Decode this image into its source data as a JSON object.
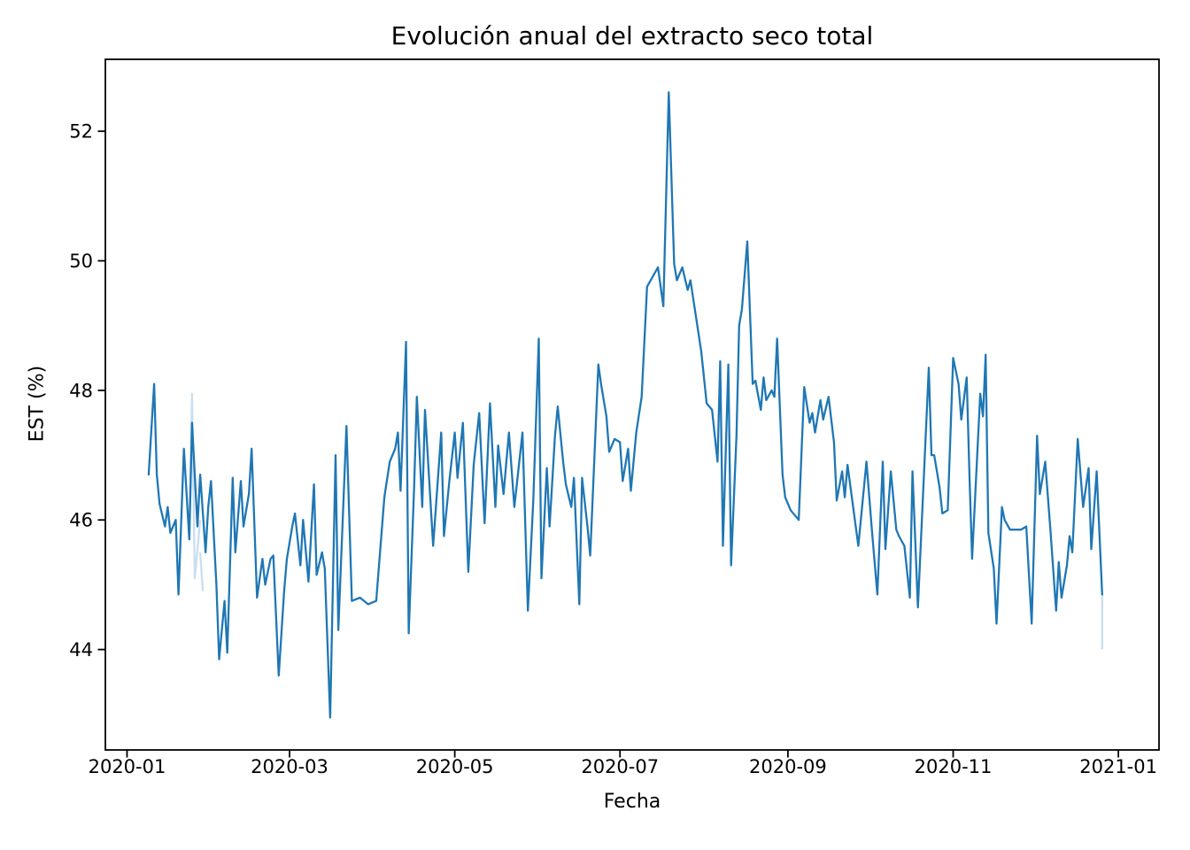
{
  "chart_data": {
    "type": "line",
    "title": "Evolución anual del extracto seco total",
    "xlabel": "Fecha",
    "ylabel": "EST (%)",
    "grid": false,
    "legend": "none",
    "line_color": "#1f77b4",
    "faint_line_color": "#cbdeef",
    "axis_color": "#000000",
    "ylim": [
      42.45,
      53.11
    ],
    "xlim": [
      "2019-12-24",
      "2021-01-16"
    ],
    "y_ticks": [
      {
        "label": "44",
        "value": 44
      },
      {
        "label": "46",
        "value": 46
      },
      {
        "label": "48",
        "value": 48
      },
      {
        "label": "50",
        "value": 50
      },
      {
        "label": "52",
        "value": 52
      }
    ],
    "x_ticks": [
      {
        "label": "2020-01",
        "date": "2020-01-01"
      },
      {
        "label": "2020-03",
        "date": "2020-03-01"
      },
      {
        "label": "2020-05",
        "date": "2020-05-01"
      },
      {
        "label": "2020-07",
        "date": "2020-07-01"
      },
      {
        "label": "2020-09",
        "date": "2020-09-01"
      },
      {
        "label": "2020-11",
        "date": "2020-11-01"
      },
      {
        "label": "2021-01",
        "date": "2021-01-01"
      }
    ],
    "series": [
      {
        "name": "EST",
        "points": [
          [
            "2020-01-09",
            46.7
          ],
          [
            "2020-01-11",
            48.1
          ],
          [
            "2020-01-12",
            46.7
          ],
          [
            "2020-01-13",
            46.25
          ],
          [
            "2020-01-15",
            45.9
          ],
          [
            "2020-01-16",
            46.2
          ],
          [
            "2020-01-17",
            45.8
          ],
          [
            "2020-01-19",
            46.0
          ],
          [
            "2020-01-20",
            44.85
          ],
          [
            "2020-01-22",
            47.1
          ],
          [
            "2020-01-24",
            45.7
          ],
          [
            "2020-01-25",
            47.5
          ],
          [
            "2020-01-27",
            45.9
          ],
          [
            "2020-01-28",
            46.7
          ],
          [
            "2020-01-30",
            45.5
          ],
          [
            "2020-01-31",
            46.2
          ],
          [
            "2020-02-01",
            46.6
          ],
          [
            "2020-02-03",
            45.0
          ],
          [
            "2020-02-04",
            43.85
          ],
          [
            "2020-02-06",
            44.75
          ],
          [
            "2020-02-07",
            43.95
          ],
          [
            "2020-02-09",
            46.65
          ],
          [
            "2020-02-10",
            45.5
          ],
          [
            "2020-02-12",
            46.6
          ],
          [
            "2020-02-13",
            45.9
          ],
          [
            "2020-02-15",
            46.4
          ],
          [
            "2020-02-16",
            47.1
          ],
          [
            "2020-02-18",
            44.8
          ],
          [
            "2020-02-20",
            45.4
          ],
          [
            "2020-02-21",
            45.0
          ],
          [
            "2020-02-23",
            45.4
          ],
          [
            "2020-02-24",
            45.45
          ],
          [
            "2020-02-26",
            43.6
          ],
          [
            "2020-02-28",
            44.9
          ],
          [
            "2020-02-29",
            45.4
          ],
          [
            "2020-03-02",
            45.9
          ],
          [
            "2020-03-03",
            46.1
          ],
          [
            "2020-03-05",
            45.3
          ],
          [
            "2020-03-06",
            46.0
          ],
          [
            "2020-03-08",
            45.05
          ],
          [
            "2020-03-10",
            46.55
          ],
          [
            "2020-03-11",
            45.15
          ],
          [
            "2020-03-13",
            45.5
          ],
          [
            "2020-03-14",
            45.25
          ],
          [
            "2020-03-16",
            42.95
          ],
          [
            "2020-03-18",
            47.0
          ],
          [
            "2020-03-19",
            44.3
          ],
          [
            "2020-03-22",
            47.45
          ],
          [
            "2020-03-24",
            44.75
          ],
          [
            "2020-03-27",
            44.8
          ],
          [
            "2020-03-30",
            44.7
          ],
          [
            "2020-04-02",
            44.75
          ],
          [
            "2020-04-05",
            46.35
          ],
          [
            "2020-04-07",
            46.9
          ],
          [
            "2020-04-09",
            47.1
          ],
          [
            "2020-04-10",
            47.35
          ],
          [
            "2020-04-11",
            46.45
          ],
          [
            "2020-04-13",
            48.75
          ],
          [
            "2020-04-14",
            44.25
          ],
          [
            "2020-04-16",
            46.5
          ],
          [
            "2020-04-17",
            47.9
          ],
          [
            "2020-04-19",
            46.2
          ],
          [
            "2020-04-20",
            47.7
          ],
          [
            "2020-04-23",
            45.6
          ],
          [
            "2020-04-26",
            47.35
          ],
          [
            "2020-04-27",
            45.75
          ],
          [
            "2020-04-29",
            46.6
          ],
          [
            "2020-05-01",
            47.35
          ],
          [
            "2020-05-02",
            46.65
          ],
          [
            "2020-05-04",
            47.5
          ],
          [
            "2020-05-06",
            45.2
          ],
          [
            "2020-05-08",
            46.85
          ],
          [
            "2020-05-10",
            47.65
          ],
          [
            "2020-05-12",
            45.95
          ],
          [
            "2020-05-14",
            47.8
          ],
          [
            "2020-05-16",
            46.2
          ],
          [
            "2020-05-17",
            47.15
          ],
          [
            "2020-05-19",
            46.4
          ],
          [
            "2020-05-21",
            47.35
          ],
          [
            "2020-05-23",
            46.2
          ],
          [
            "2020-05-26",
            47.35
          ],
          [
            "2020-05-28",
            44.6
          ],
          [
            "2020-05-30",
            46.3
          ],
          [
            "2020-06-01",
            48.8
          ],
          [
            "2020-06-02",
            45.1
          ],
          [
            "2020-06-04",
            46.8
          ],
          [
            "2020-06-05",
            45.9
          ],
          [
            "2020-06-07",
            47.3
          ],
          [
            "2020-06-08",
            47.75
          ],
          [
            "2020-06-10",
            46.9
          ],
          [
            "2020-06-11",
            46.55
          ],
          [
            "2020-06-13",
            46.2
          ],
          [
            "2020-06-14",
            46.65
          ],
          [
            "2020-06-16",
            44.7
          ],
          [
            "2020-06-17",
            46.65
          ],
          [
            "2020-06-19",
            45.9
          ],
          [
            "2020-06-20",
            45.45
          ],
          [
            "2020-06-23",
            48.4
          ],
          [
            "2020-06-24",
            48.1
          ],
          [
            "2020-06-26",
            47.6
          ],
          [
            "2020-06-27",
            47.05
          ],
          [
            "2020-06-29",
            47.25
          ],
          [
            "2020-07-01",
            47.2
          ],
          [
            "2020-07-02",
            46.6
          ],
          [
            "2020-07-04",
            47.1
          ],
          [
            "2020-07-05",
            46.45
          ],
          [
            "2020-07-07",
            47.35
          ],
          [
            "2020-07-09",
            47.9
          ],
          [
            "2020-07-11",
            49.6
          ],
          [
            "2020-07-13",
            49.75
          ],
          [
            "2020-07-15",
            49.9
          ],
          [
            "2020-07-17",
            49.3
          ],
          [
            "2020-07-19",
            52.6
          ],
          [
            "2020-07-21",
            49.95
          ],
          [
            "2020-07-22",
            49.7
          ],
          [
            "2020-07-24",
            49.9
          ],
          [
            "2020-07-26",
            49.55
          ],
          [
            "2020-07-27",
            49.7
          ],
          [
            "2020-07-29",
            49.15
          ],
          [
            "2020-07-31",
            48.6
          ],
          [
            "2020-08-02",
            47.8
          ],
          [
            "2020-08-04",
            47.7
          ],
          [
            "2020-08-06",
            46.9
          ],
          [
            "2020-08-07",
            48.45
          ],
          [
            "2020-08-08",
            45.6
          ],
          [
            "2020-08-10",
            48.4
          ],
          [
            "2020-08-11",
            45.3
          ],
          [
            "2020-08-13",
            47.3
          ],
          [
            "2020-08-14",
            49.0
          ],
          [
            "2020-08-15",
            49.25
          ],
          [
            "2020-08-17",
            50.3
          ],
          [
            "2020-08-19",
            48.1
          ],
          [
            "2020-08-20",
            48.15
          ],
          [
            "2020-08-22",
            47.7
          ],
          [
            "2020-08-23",
            48.2
          ],
          [
            "2020-08-24",
            47.85
          ],
          [
            "2020-08-26",
            48.0
          ],
          [
            "2020-08-27",
            47.9
          ],
          [
            "2020-08-28",
            48.8
          ],
          [
            "2020-08-30",
            46.7
          ],
          [
            "2020-08-31",
            46.35
          ],
          [
            "2020-09-02",
            46.15
          ],
          [
            "2020-09-05",
            46.0
          ],
          [
            "2020-09-07",
            48.05
          ],
          [
            "2020-09-09",
            47.5
          ],
          [
            "2020-09-10",
            47.65
          ],
          [
            "2020-09-11",
            47.35
          ],
          [
            "2020-09-13",
            47.85
          ],
          [
            "2020-09-14",
            47.55
          ],
          [
            "2020-09-16",
            47.9
          ],
          [
            "2020-09-18",
            47.2
          ],
          [
            "2020-09-19",
            46.3
          ],
          [
            "2020-09-21",
            46.75
          ],
          [
            "2020-09-22",
            46.35
          ],
          [
            "2020-09-23",
            46.85
          ],
          [
            "2020-09-27",
            45.6
          ],
          [
            "2020-09-30",
            46.9
          ],
          [
            "2020-10-02",
            45.85
          ],
          [
            "2020-10-04",
            44.85
          ],
          [
            "2020-10-06",
            46.9
          ],
          [
            "2020-10-07",
            45.55
          ],
          [
            "2020-10-09",
            46.75
          ],
          [
            "2020-10-11",
            45.85
          ],
          [
            "2020-10-12",
            45.75
          ],
          [
            "2020-10-14",
            45.6
          ],
          [
            "2020-10-16",
            44.8
          ],
          [
            "2020-10-17",
            46.75
          ],
          [
            "2020-10-19",
            44.65
          ],
          [
            "2020-10-23",
            48.35
          ],
          [
            "2020-10-24",
            47.0
          ],
          [
            "2020-10-25",
            47.0
          ],
          [
            "2020-10-27",
            46.5
          ],
          [
            "2020-10-28",
            46.1
          ],
          [
            "2020-10-30",
            46.15
          ],
          [
            "2020-11-01",
            48.5
          ],
          [
            "2020-11-03",
            48.1
          ],
          [
            "2020-11-04",
            47.55
          ],
          [
            "2020-11-06",
            48.2
          ],
          [
            "2020-11-07",
            46.7
          ],
          [
            "2020-11-08",
            45.4
          ],
          [
            "2020-11-11",
            47.95
          ],
          [
            "2020-11-12",
            47.6
          ],
          [
            "2020-11-13",
            48.55
          ],
          [
            "2020-11-14",
            45.8
          ],
          [
            "2020-11-16",
            45.25
          ],
          [
            "2020-11-17",
            44.4
          ],
          [
            "2020-11-19",
            46.2
          ],
          [
            "2020-11-20",
            46.0
          ],
          [
            "2020-11-22",
            45.85
          ],
          [
            "2020-11-24",
            45.85
          ],
          [
            "2020-11-26",
            45.85
          ],
          [
            "2020-11-28",
            45.9
          ],
          [
            "2020-11-30",
            44.4
          ],
          [
            "2020-12-02",
            47.3
          ],
          [
            "2020-12-03",
            46.4
          ],
          [
            "2020-12-05",
            46.9
          ],
          [
            "2020-12-07",
            45.8
          ],
          [
            "2020-12-09",
            44.6
          ],
          [
            "2020-12-10",
            45.35
          ],
          [
            "2020-12-11",
            44.8
          ],
          [
            "2020-12-13",
            45.3
          ],
          [
            "2020-12-14",
            45.75
          ],
          [
            "2020-12-15",
            45.5
          ],
          [
            "2020-12-17",
            47.25
          ],
          [
            "2020-12-19",
            46.2
          ],
          [
            "2020-12-21",
            46.8
          ],
          [
            "2020-12-22",
            45.55
          ],
          [
            "2020-12-24",
            46.75
          ],
          [
            "2020-12-26",
            44.85
          ]
        ]
      }
    ],
    "faint_segments": [
      [
        [
          "2020-01-24",
          45.9
        ],
        [
          "2020-01-25",
          47.95
        ],
        [
          "2020-01-26",
          45.1
        ],
        [
          "2020-01-28",
          46.0
        ]
      ],
      [
        [
          "2020-01-28",
          45.5
        ],
        [
          "2020-01-29",
          44.9
        ]
      ],
      [
        [
          "2020-12-26",
          44.85
        ],
        [
          "2020-12-26",
          44.0
        ]
      ]
    ]
  }
}
